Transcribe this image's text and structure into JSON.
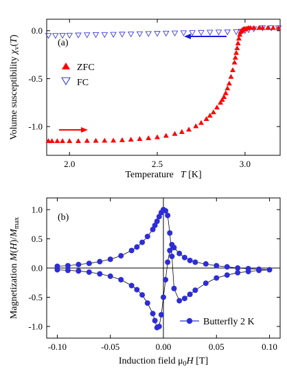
{
  "chart_data": [
    {
      "type": "scatter",
      "panel_label": "(a)",
      "xlabel_parts": [
        "Temperature",
        "T",
        " [K]"
      ],
      "ylabel_parts": [
        "Volume susceptibility ",
        "χ",
        "v",
        "(",
        "T",
        ")"
      ],
      "xlim": [
        1.87,
        3.2
      ],
      "ylim": [
        -1.3,
        0.12
      ],
      "x_ticks": [
        {
          "value": 2.0,
          "label": "2.0"
        },
        {
          "value": 2.5,
          "label": "2.5"
        },
        {
          "value": 3.0,
          "label": "3.0"
        }
      ],
      "y_ticks": [
        {
          "value": 0.0,
          "label": "0.0"
        },
        {
          "value": -0.5,
          "label": "-0.5"
        },
        {
          "value": -1.0,
          "label": "-1.0"
        }
      ],
      "legend": {
        "placement": "center-left"
      },
      "colors": {
        "ZFC": "#ff0000",
        "FC": "#3a3adf"
      },
      "series": [
        {
          "name": "ZFC",
          "marker": "filled-triangle-up",
          "x": [
            1.88,
            1.9,
            1.93,
            1.96,
            2.0,
            2.05,
            2.1,
            2.15,
            2.2,
            2.25,
            2.3,
            2.35,
            2.4,
            2.45,
            2.5,
            2.55,
            2.6,
            2.64,
            2.68,
            2.72,
            2.75,
            2.78,
            2.8,
            2.82,
            2.84,
            2.86,
            2.87,
            2.88,
            2.89,
            2.9,
            2.91,
            2.92,
            2.93,
            2.94,
            2.945,
            2.95,
            2.955,
            2.96,
            2.965,
            2.97,
            2.975,
            2.98,
            2.985,
            2.99,
            2.995,
            3.0,
            3.01,
            3.02,
            3.03,
            3.05,
            3.08,
            3.1,
            3.13,
            3.16,
            3.19
          ],
          "y": [
            -1.15,
            -1.15,
            -1.15,
            -1.15,
            -1.15,
            -1.15,
            -1.148,
            -1.147,
            -1.146,
            -1.145,
            -1.14,
            -1.135,
            -1.128,
            -1.12,
            -1.11,
            -1.095,
            -1.075,
            -1.055,
            -1.03,
            -0.995,
            -0.96,
            -0.92,
            -0.885,
            -0.85,
            -0.8,
            -0.75,
            -0.72,
            -0.69,
            -0.65,
            -0.6,
            -0.55,
            -0.48,
            -0.41,
            -0.33,
            -0.28,
            -0.23,
            -0.18,
            -0.13,
            -0.08,
            -0.04,
            -0.01,
            0.0,
            0.01,
            0.015,
            0.02,
            0.02,
            0.025,
            0.03,
            0.03,
            0.03,
            0.03,
            0.03,
            0.03,
            0.03,
            0.03
          ]
        },
        {
          "name": "FC",
          "marker": "open-triangle-down",
          "x": [
            1.88,
            1.92,
            1.96,
            2.0,
            2.05,
            2.1,
            2.15,
            2.2,
            2.25,
            2.3,
            2.35,
            2.4,
            2.45,
            2.5,
            2.55,
            2.6,
            2.65,
            2.7,
            2.75,
            2.8,
            2.85,
            2.9,
            2.95,
            2.98,
            3.0,
            3.02,
            3.05,
            3.1,
            3.15,
            3.19
          ],
          "y": [
            -0.05,
            -0.05,
            -0.048,
            -0.047,
            -0.045,
            -0.043,
            -0.041,
            -0.04,
            -0.038,
            -0.036,
            -0.034,
            -0.032,
            -0.03,
            -0.028,
            -0.026,
            -0.024,
            -0.022,
            -0.02,
            -0.018,
            -0.016,
            -0.014,
            -0.012,
            -0.01,
            -0.005,
            0.0,
            0.01,
            0.02,
            0.03,
            0.03,
            0.03
          ]
        }
      ]
    },
    {
      "type": "line",
      "panel_label": "(b)",
      "xlabel_parts": [
        "Induction field ",
        "μ",
        "0",
        "H",
        " [T]"
      ],
      "ylabel_parts": [
        "Magnetization ",
        "M",
        "(",
        "H",
        ")/",
        "M",
        "max"
      ],
      "xlim": [
        -0.11,
        0.11
      ],
      "ylim": [
        -1.2,
        1.2
      ],
      "x_ticks": [
        {
          "value": -0.1,
          "label": "-0.10"
        },
        {
          "value": -0.05,
          "label": "-0.05"
        },
        {
          "value": 0.0,
          "label": "0.00"
        },
        {
          "value": 0.05,
          "label": "0.05"
        },
        {
          "value": 0.1,
          "label": "0.10"
        }
      ],
      "y_ticks": [
        {
          "value": 1.0,
          "label": "1.0"
        },
        {
          "value": 0.5,
          "label": "0.5"
        },
        {
          "value": 0.0,
          "label": "0.0"
        },
        {
          "value": -0.5,
          "label": "-0.5"
        },
        {
          "value": -1.0,
          "label": "-1.0"
        }
      ],
      "legend": {
        "placement": "bottom-right"
      },
      "colors": {
        "series": "#2d2dd8"
      },
      "series": [
        {
          "name": "Butterfly 2 K",
          "marker": "filled-circle",
          "x": [
            -0.1,
            -0.09,
            -0.08,
            -0.07,
            -0.06,
            -0.05,
            -0.04,
            -0.03,
            -0.025,
            -0.02,
            -0.015,
            -0.01,
            -0.008,
            -0.006,
            -0.004,
            -0.002,
            0.0,
            0.002,
            0.004,
            0.006,
            0.008,
            0.01,
            0.015,
            0.02,
            0.025,
            0.03,
            0.04,
            0.05,
            0.06,
            0.07,
            0.08,
            0.09,
            0.1,
            0.09,
            0.08,
            0.07,
            0.06,
            0.05,
            0.04,
            0.03,
            0.025,
            0.02,
            0.015,
            0.01,
            0.008,
            0.006,
            0.004,
            0.002,
            0.0,
            -0.002,
            -0.004,
            -0.006,
            -0.008,
            -0.01,
            -0.015,
            -0.02,
            -0.025,
            -0.03,
            -0.04,
            -0.05,
            -0.06,
            -0.07,
            -0.08,
            -0.09,
            -0.1
          ],
          "y": [
            0.03,
            0.04,
            0.06,
            0.08,
            0.11,
            0.15,
            0.21,
            0.3,
            0.36,
            0.44,
            0.54,
            0.66,
            0.73,
            0.8,
            0.88,
            0.95,
            1.0,
            0.98,
            0.9,
            0.6,
            0.2,
            -0.35,
            -0.56,
            -0.52,
            -0.45,
            -0.38,
            -0.26,
            -0.17,
            -0.12,
            -0.08,
            -0.06,
            -0.04,
            -0.03,
            -0.02,
            -0.01,
            0.0,
            0.02,
            0.04,
            0.07,
            0.1,
            0.13,
            0.18,
            0.25,
            0.35,
            0.4,
            0.3,
            0.1,
            -0.2,
            -0.5,
            -0.8,
            -1.0,
            -1.02,
            -0.9,
            -0.78,
            -0.6,
            -0.46,
            -0.37,
            -0.3,
            -0.2,
            -0.14,
            -0.1,
            -0.07,
            -0.05,
            -0.04,
            -0.03
          ]
        }
      ]
    }
  ]
}
